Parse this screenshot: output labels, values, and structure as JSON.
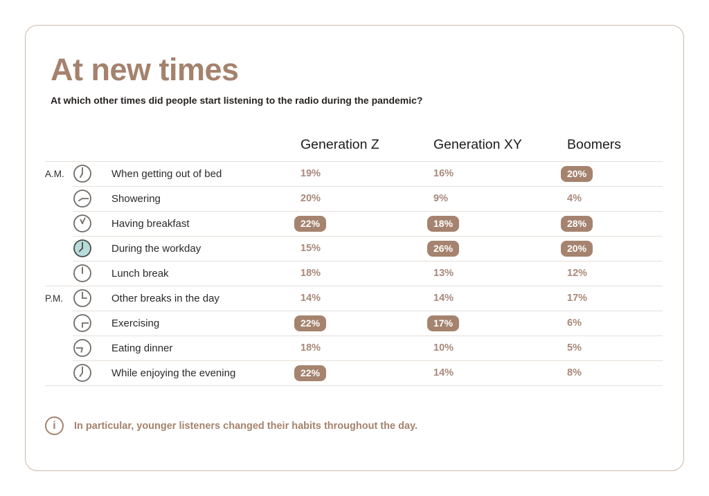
{
  "card": {
    "title": "At new times",
    "subtitle": "At which other times did people start listening to the radio during the pandemic?",
    "footer_note": "In particular, younger listeners changed their habits throughout the day.",
    "footer_icon": "info-icon",
    "footer_icon_glyph": "i"
  },
  "colors": {
    "accent_brown": "#a5826d",
    "pill_background": "#a5836e",
    "pill_text": "#ffffff",
    "value_text": "#a8887a",
    "clock_stroke": "#6e6a66",
    "clock_filled_stroke": "#4a4a4a",
    "clock_teal_fill": "#b7dcd9",
    "divider_line": "#e6dfd8",
    "card_border": "#c9b7aa",
    "heading_text": "#262220"
  },
  "table": {
    "columns": [
      "Generation Z",
      "Generation XY",
      "Boomers"
    ],
    "rows": [
      {
        "period": "A.M.",
        "group_start": true,
        "icon": "clock-icon",
        "clock": {
          "hour": 210,
          "minute": 0,
          "filled": false
        },
        "label": "When getting out of bed",
        "values": [
          {
            "text": "19%",
            "highlight": false
          },
          {
            "text": "16%",
            "highlight": false
          },
          {
            "text": "20%",
            "highlight": true
          }
        ]
      },
      {
        "period": "",
        "group_start": false,
        "icon": "clock-icon",
        "clock": {
          "hour": 240,
          "minute": 90,
          "filled": false
        },
        "label": "Showering",
        "values": [
          {
            "text": "20%",
            "highlight": false
          },
          {
            "text": "9%",
            "highlight": false
          },
          {
            "text": "4%",
            "highlight": false
          }
        ]
      },
      {
        "period": "",
        "group_start": false,
        "icon": "clock-icon",
        "clock": {
          "hour": 335,
          "minute": 25,
          "filled": false
        },
        "label": "Having breakfast",
        "values": [
          {
            "text": "22%",
            "highlight": true
          },
          {
            "text": "18%",
            "highlight": true
          },
          {
            "text": "28%",
            "highlight": true
          }
        ]
      },
      {
        "period": "",
        "group_start": false,
        "icon": "clock-icon",
        "clock": {
          "hour": 225,
          "minute": 0,
          "filled": true
        },
        "label": "During the workday",
        "values": [
          {
            "text": "15%",
            "highlight": false
          },
          {
            "text": "26%",
            "highlight": true
          },
          {
            "text": "20%",
            "highlight": true
          }
        ]
      },
      {
        "period": "",
        "group_start": false,
        "icon": "clock-icon",
        "clock": {
          "hour": 0,
          "minute": 0,
          "filled": false
        },
        "label": "Lunch break",
        "values": [
          {
            "text": "18%",
            "highlight": false
          },
          {
            "text": "13%",
            "highlight": false
          },
          {
            "text": "12%",
            "highlight": false
          }
        ]
      },
      {
        "period": "P.M.",
        "group_start": true,
        "icon": "clock-icon",
        "clock": {
          "hour": 90,
          "minute": 0,
          "filled": false
        },
        "label": "Other breaks in the day",
        "values": [
          {
            "text": "14%",
            "highlight": false
          },
          {
            "text": "14%",
            "highlight": false
          },
          {
            "text": "17%",
            "highlight": false
          }
        ]
      },
      {
        "period": "",
        "group_start": false,
        "icon": "clock-icon",
        "clock": {
          "hour": 180,
          "minute": 90,
          "filled": false
        },
        "label": "Exercising",
        "values": [
          {
            "text": "22%",
            "highlight": true
          },
          {
            "text": "17%",
            "highlight": true
          },
          {
            "text": "6%",
            "highlight": false
          }
        ]
      },
      {
        "period": "",
        "group_start": false,
        "icon": "clock-icon",
        "clock": {
          "hour": 195,
          "minute": 270,
          "filled": false
        },
        "label": "Eating dinner",
        "values": [
          {
            "text": "18%",
            "highlight": false
          },
          {
            "text": "10%",
            "highlight": false
          },
          {
            "text": "5%",
            "highlight": false
          }
        ]
      },
      {
        "period": "",
        "group_start": false,
        "icon": "clock-icon",
        "clock": {
          "hour": 215,
          "minute": 0,
          "filled": false
        },
        "label": "While enjoying the evening",
        "values": [
          {
            "text": "22%",
            "highlight": true
          },
          {
            "text": "14%",
            "highlight": false
          },
          {
            "text": "8%",
            "highlight": false
          }
        ]
      }
    ]
  },
  "chart_data": {
    "type": "table",
    "title": "At new times",
    "subtitle": "At which other times did people start listening to the radio during the pandemic?",
    "categories": [
      "When getting out of bed",
      "Showering",
      "Having breakfast",
      "During the workday",
      "Lunch break",
      "Other breaks in the day",
      "Exercising",
      "Eating dinner",
      "While enjoying the evening"
    ],
    "category_periods": [
      "A.M.",
      "A.M.",
      "A.M.",
      "A.M.",
      "A.M.",
      "P.M.",
      "P.M.",
      "P.M.",
      "P.M."
    ],
    "unit": "%",
    "series": [
      {
        "name": "Generation Z",
        "values": [
          19,
          20,
          22,
          15,
          18,
          14,
          22,
          18,
          22
        ],
        "highlighted": [
          false,
          false,
          true,
          false,
          false,
          false,
          true,
          false,
          true
        ]
      },
      {
        "name": "Generation XY",
        "values": [
          16,
          9,
          18,
          26,
          13,
          14,
          17,
          10,
          14
        ],
        "highlighted": [
          false,
          false,
          true,
          true,
          false,
          false,
          true,
          false,
          false
        ]
      },
      {
        "name": "Boomers",
        "values": [
          20,
          4,
          28,
          20,
          12,
          17,
          6,
          5,
          8
        ],
        "highlighted": [
          true,
          false,
          true,
          true,
          false,
          false,
          false,
          false,
          false
        ]
      }
    ],
    "note": "In particular, younger listeners changed their habits throughout the day."
  }
}
